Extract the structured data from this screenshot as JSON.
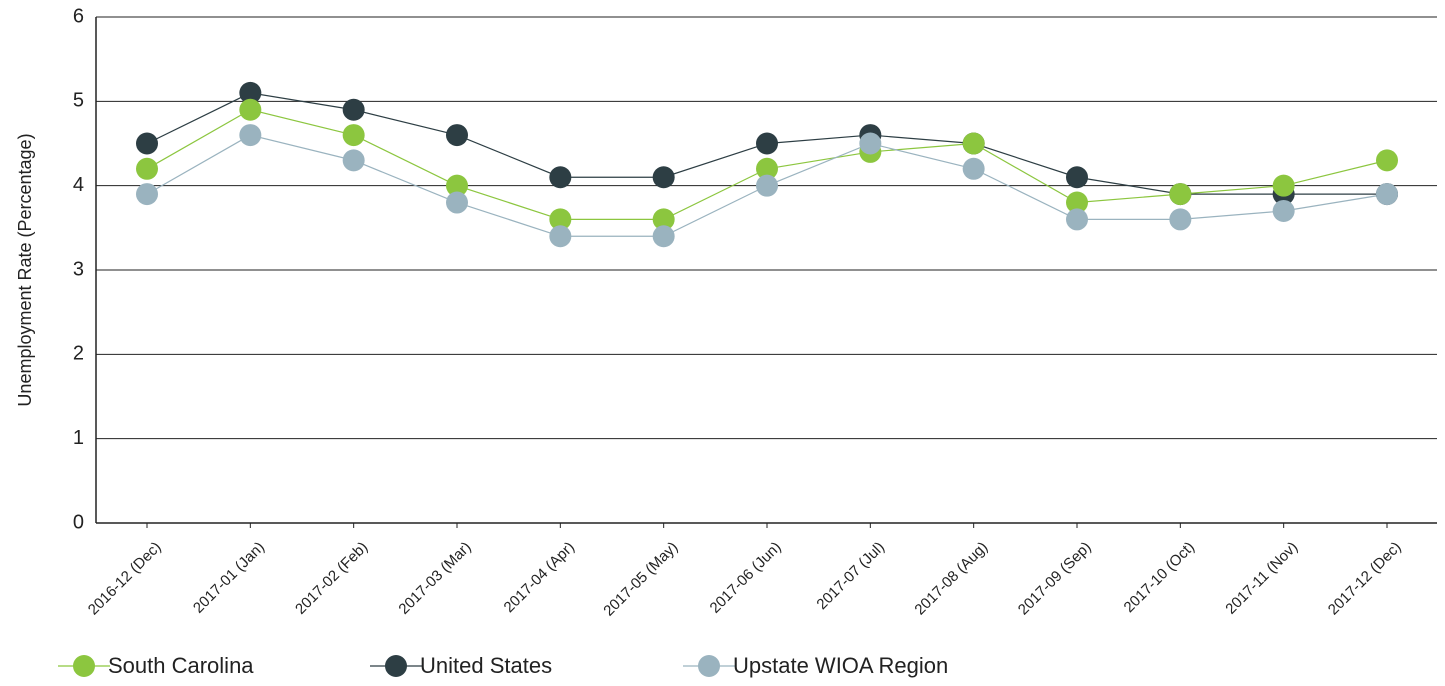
{
  "chart_data": {
    "type": "line",
    "y_label": "Unemployment Rate (Percentage)",
    "categories": [
      "2016-12 (Dec)",
      "2017-01 (Jan)",
      "2017-02 (Feb)",
      "2017-03 (Mar)",
      "2017-04 (Apr)",
      "2017-05 (May)",
      "2017-06 (Jun)",
      "2017-07 (Jul)",
      "2017-08 (Aug)",
      "2017-09 (Sep)",
      "2017-10 (Oct)",
      "2017-11 (Nov)",
      "2017-12 (Dec)"
    ],
    "series": [
      {
        "name": "South Carolina",
        "color": "#8cc63f",
        "values": [
          4.2,
          4.9,
          4.6,
          4.0,
          3.6,
          3.6,
          4.2,
          4.4,
          4.5,
          3.8,
          3.9,
          4.0,
          4.3
        ]
      },
      {
        "name": "United States",
        "color": "#2d3e44",
        "values": [
          4.5,
          5.1,
          4.9,
          4.6,
          4.1,
          4.1,
          4.5,
          4.6,
          4.5,
          4.1,
          3.9,
          3.9,
          3.9
        ]
      },
      {
        "name": "Upstate WIOA Region",
        "color": "#9ab3bf",
        "values": [
          3.9,
          4.6,
          4.3,
          3.8,
          3.4,
          3.4,
          4.0,
          4.5,
          4.2,
          3.6,
          3.6,
          3.7,
          3.9
        ]
      }
    ],
    "ylim": [
      0,
      6
    ],
    "yticks": [
      0,
      1,
      2,
      3,
      4,
      5,
      6
    ],
    "grid": true,
    "legend": "bottom"
  }
}
